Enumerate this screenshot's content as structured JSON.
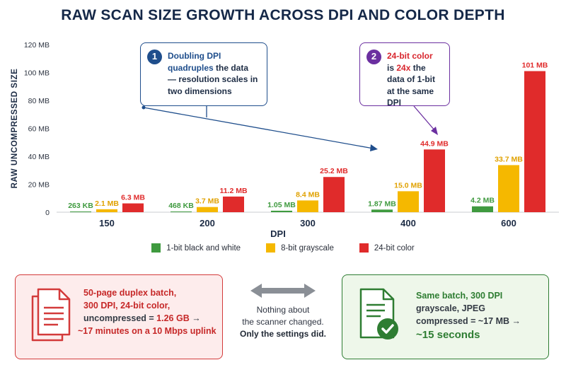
{
  "title": "RAW SCAN SIZE GROWTH ACROSS DPI AND COLOR DEPTH",
  "chart_data": {
    "type": "bar",
    "title": "RAW SCAN SIZE GROWTH ACROSS DPI AND COLOR DEPTH",
    "xlabel": "DPI",
    "ylabel": "RAW UNCOMPRESSED SIZE",
    "ylim": [
      0,
      120
    ],
    "yticks": [
      0,
      20,
      40,
      60,
      80,
      100,
      120
    ],
    "ytick_labels": [
      "0",
      "20 MB",
      "40 MB",
      "60 MB",
      "80 MB",
      "100 MB",
      "120 MB"
    ],
    "categories": [
      "150",
      "200",
      "300",
      "400",
      "600"
    ],
    "series": [
      {
        "name": "1-bit black and white",
        "color": "#3f9a3f",
        "values": [
          0.263,
          0.468,
          1.05,
          1.87,
          4.2
        ],
        "labels": [
          "263 KB",
          "468 KB",
          "1.05 MB",
          "1.87 MB",
          "4.2 MB"
        ]
      },
      {
        "name": "8-bit grayscale",
        "color": "#f5b800",
        "values": [
          2.1,
          3.7,
          8.4,
          15.0,
          33.7
        ],
        "labels": [
          "2.1 MB",
          "3.7 MB",
          "8.4 MB",
          "15.0 MB",
          "33.7 MB"
        ]
      },
      {
        "name": "24-bit color",
        "color": "#e02b2b",
        "values": [
          6.3,
          11.2,
          25.2,
          44.9,
          101
        ],
        "labels": [
          "6.3 MB",
          "11.2 MB",
          "25.2 MB",
          "44.9 MB",
          "101 MB"
        ]
      }
    ],
    "legend_position": "bottom",
    "grid": false
  },
  "callouts": [
    {
      "number": "1",
      "highlight": "Doubling DPI quadruples",
      "text": " the data — resolution scales in two dimensions"
    },
    {
      "number": "2",
      "highlight_a": "24-bit color",
      "text_a": " is ",
      "highlight_b": "24x",
      "text_b": " the data of 1-bit at the same DPI"
    }
  ],
  "boxes": {
    "left": {
      "line1": "50-page duplex batch,",
      "line2": "300 DPI, 24-bit color,",
      "line3_pre": "uncompressed = ",
      "line3_value": "1.26 GB",
      "line3_post": " →",
      "line4": "~17 minutes on a 10 Mbps uplink",
      "icon": "document-icon",
      "color": "#c62828"
    },
    "middle": {
      "line1": "Nothing about",
      "line2": "the scanner changed.",
      "line3": "Only the settings did.",
      "icon": "double-arrow-icon"
    },
    "right": {
      "line1": "Same batch, 300 DPI",
      "line2": "grayscale, JPEG",
      "line3": "compressed = ~17 MB →",
      "line4": "~15 seconds",
      "icon": "document-check-icon",
      "color": "#2e7d32"
    }
  }
}
